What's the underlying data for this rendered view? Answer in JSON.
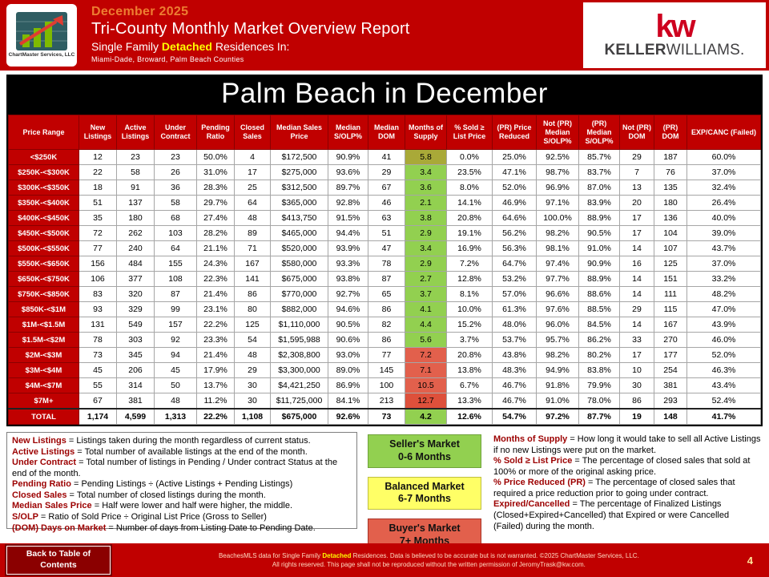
{
  "colors": {
    "brand_red": "#C00000",
    "kw_red": "#CE011F",
    "highlight_yellow": "#FFFF00",
    "sellers_green": "#92D050",
    "balanced_yellow": "#FFFF66",
    "buyers_red": "#E2604C"
  },
  "header": {
    "date": "December 2025",
    "title": "Tri-County Monthly Market Overview Report",
    "subtitle_prefix": "Single Family ",
    "subtitle_highlight": "Detached",
    "subtitle_suffix": " Residences In:",
    "counties": "Miami-Dade, Broward, Palm Beach Counties",
    "logo_text": "ChartMaster Services, LLC",
    "kw_mark": "kw",
    "kw_name_bold": "KELLER",
    "kw_name_light": "WILLIAMS."
  },
  "table": {
    "title": "Palm Beach in December",
    "columns": [
      "Price Range",
      "New Listings",
      "Active Listings",
      "Under Contract",
      "Pending Ratio",
      "Closed Sales",
      "Median Sales Price",
      "Median S/OLP%",
      "Median DOM",
      "Months of Supply",
      "% Sold ≥ List Price",
      "(PR) Price Reduced",
      "Not (PR) Median S/OLP%",
      "(PR) Median S/OLP%",
      "Not (PR) DOM",
      "(PR) DOM",
      "EXP/CANC (Failed)"
    ],
    "rows": [
      {
        "label": "<$250K",
        "values": [
          "12",
          "23",
          "23",
          "50.0%",
          "4",
          "$172,500",
          "90.9%",
          "41",
          "5.8",
          "0.0%",
          "25.0%",
          "92.5%",
          "85.7%",
          "29",
          "187",
          "60.0%"
        ],
        "supply_color": "#A9A938"
      },
      {
        "label": "$250K-<$300K",
        "values": [
          "22",
          "58",
          "26",
          "31.0%",
          "17",
          "$275,000",
          "93.6%",
          "29",
          "3.4",
          "23.5%",
          "47.1%",
          "98.7%",
          "83.7%",
          "7",
          "76",
          "37.0%"
        ],
        "supply_color": "#92D050"
      },
      {
        "label": "$300K-<$350K",
        "values": [
          "18",
          "91",
          "36",
          "28.3%",
          "25",
          "$312,500",
          "89.7%",
          "67",
          "3.6",
          "8.0%",
          "52.0%",
          "96.9%",
          "87.0%",
          "13",
          "135",
          "32.4%"
        ],
        "supply_color": "#92D050"
      },
      {
        "label": "$350K-<$400K",
        "values": [
          "51",
          "137",
          "58",
          "29.7%",
          "64",
          "$365,000",
          "92.8%",
          "46",
          "2.1",
          "14.1%",
          "46.9%",
          "97.1%",
          "83.9%",
          "20",
          "180",
          "26.4%"
        ],
        "supply_color": "#92D050"
      },
      {
        "label": "$400K-<$450K",
        "values": [
          "35",
          "180",
          "68",
          "27.4%",
          "48",
          "$413,750",
          "91.5%",
          "63",
          "3.8",
          "20.8%",
          "64.6%",
          "100.0%",
          "88.9%",
          "17",
          "136",
          "40.0%"
        ],
        "supply_color": "#92D050"
      },
      {
        "label": "$450K-<$500K",
        "values": [
          "72",
          "262",
          "103",
          "28.2%",
          "89",
          "$465,000",
          "94.4%",
          "51",
          "2.9",
          "19.1%",
          "56.2%",
          "98.2%",
          "90.5%",
          "17",
          "104",
          "39.0%"
        ],
        "supply_color": "#92D050"
      },
      {
        "label": "$500K-<$550K",
        "values": [
          "77",
          "240",
          "64",
          "21.1%",
          "71",
          "$520,000",
          "93.9%",
          "47",
          "3.4",
          "16.9%",
          "56.3%",
          "98.1%",
          "91.0%",
          "14",
          "107",
          "43.7%"
        ],
        "supply_color": "#92D050"
      },
      {
        "label": "$550K-<$650K",
        "values": [
          "156",
          "484",
          "155",
          "24.3%",
          "167",
          "$580,000",
          "93.3%",
          "78",
          "2.9",
          "7.2%",
          "64.7%",
          "97.4%",
          "90.9%",
          "16",
          "125",
          "37.0%"
        ],
        "supply_color": "#92D050"
      },
      {
        "label": "$650K-<$750K",
        "values": [
          "106",
          "377",
          "108",
          "22.3%",
          "141",
          "$675,000",
          "93.8%",
          "87",
          "2.7",
          "12.8%",
          "53.2%",
          "97.7%",
          "88.9%",
          "14",
          "151",
          "33.2%"
        ],
        "supply_color": "#92D050"
      },
      {
        "label": "$750K-<$850K",
        "values": [
          "83",
          "320",
          "87",
          "21.4%",
          "86",
          "$770,000",
          "92.7%",
          "65",
          "3.7",
          "8.1%",
          "57.0%",
          "96.6%",
          "88.6%",
          "14",
          "111",
          "48.2%"
        ],
        "supply_color": "#92D050"
      },
      {
        "label": "$850K-<$1M",
        "values": [
          "93",
          "329",
          "99",
          "23.1%",
          "80",
          "$882,000",
          "94.6%",
          "86",
          "4.1",
          "10.0%",
          "61.3%",
          "97.6%",
          "88.5%",
          "29",
          "115",
          "47.0%"
        ],
        "supply_color": "#92D050"
      },
      {
        "label": "$1M-<$1.5M",
        "values": [
          "131",
          "549",
          "157",
          "22.2%",
          "125",
          "$1,110,000",
          "90.5%",
          "82",
          "4.4",
          "15.2%",
          "48.0%",
          "96.0%",
          "84.5%",
          "14",
          "167",
          "43.9%"
        ],
        "supply_color": "#92D050"
      },
      {
        "label": "$1.5M-<$2M",
        "values": [
          "78",
          "303",
          "92",
          "23.3%",
          "54",
          "$1,595,988",
          "90.6%",
          "86",
          "5.6",
          "3.7%",
          "53.7%",
          "95.7%",
          "86.2%",
          "33",
          "270",
          "46.0%"
        ],
        "supply_color": "#92D050"
      },
      {
        "label": "$2M-<$3M",
        "values": [
          "73",
          "345",
          "94",
          "21.4%",
          "48",
          "$2,308,800",
          "93.0%",
          "77",
          "7.2",
          "20.8%",
          "43.8%",
          "98.2%",
          "80.2%",
          "17",
          "177",
          "52.0%"
        ],
        "supply_color": "#E2604C"
      },
      {
        "label": "$3M-<$4M",
        "values": [
          "45",
          "206",
          "45",
          "17.9%",
          "29",
          "$3,300,000",
          "89.0%",
          "145",
          "7.1",
          "13.8%",
          "48.3%",
          "94.9%",
          "83.8%",
          "10",
          "254",
          "46.3%"
        ],
        "supply_color": "#E2604C"
      },
      {
        "label": "$4M-<$7M",
        "values": [
          "55",
          "314",
          "50",
          "13.7%",
          "30",
          "$4,421,250",
          "86.9%",
          "100",
          "10.5",
          "6.7%",
          "46.7%",
          "91.8%",
          "79.9%",
          "30",
          "381",
          "43.4%"
        ],
        "supply_color": "#E2604C"
      },
      {
        "label": "$7M+",
        "values": [
          "67",
          "381",
          "48",
          "11.2%",
          "30",
          "$11,725,000",
          "84.1%",
          "213",
          "12.7",
          "13.3%",
          "46.7%",
          "91.0%",
          "78.0%",
          "86",
          "293",
          "52.4%"
        ],
        "supply_color": "#DE503B"
      },
      {
        "label": "TOTAL",
        "is_total": true,
        "values": [
          "1,174",
          "4,599",
          "1,313",
          "22.2%",
          "1,108",
          "$675,000",
          "92.6%",
          "73",
          "4.2",
          "12.6%",
          "54.7%",
          "97.2%",
          "87.7%",
          "19",
          "148",
          "41.7%"
        ],
        "supply_color": "#92D050"
      }
    ]
  },
  "legend": [
    {
      "line1": "Seller's Market",
      "line2": "0-6 Months"
    },
    {
      "line1": "Balanced Market",
      "line2": "6-7 Months"
    },
    {
      "line1": "Buyer's Market",
      "line2": "7+ Months"
    }
  ],
  "definitions_left": [
    {
      "term": "New Listings",
      "text": "= Listings taken during the month regardless of current status."
    },
    {
      "term": "Active Listings",
      "text": "= Total number of available listings at the end of the month."
    },
    {
      "term": "Under Contract",
      "text": "= Total number of listings in Pending / Under contract Status at the end of the month."
    },
    {
      "term": "Pending Ratio",
      "text": "= Pending Listings ÷ (Active Listings + Pending Listings)"
    },
    {
      "term": "Closed Sales",
      "text": "= Total number of closed listings during the month."
    },
    {
      "term": "Median Sales Price",
      "text": "= Half were lower and half were higher, the middle."
    },
    {
      "term": "S/OLP",
      "text": "= Ratio of Sold Price ÷ Original List Price (Gross to Seller)"
    },
    {
      "term": "(DOM) Days on Market",
      "text": "= Number of days from Listing Date to Pending Date."
    }
  ],
  "definitions_right": [
    {
      "term": "Months of Supply",
      "text": "= How long it would take to sell all Active Listings if no new Listings were put on the market."
    },
    {
      "term": "% Sold ≥ List Price",
      "text": "= The percentage of closed sales that sold at 100% or more of the original asking price."
    },
    {
      "term": "% Price Reduced (PR)",
      "text": "= The percentage of closed sales that required a price reduction prior to going under contract."
    },
    {
      "term": "Expired/Cancelled",
      "text": "= The percentage of Finalized Listings (Closed+Expired+Cancelled) that Expired or were Cancelled (Failed) during the month."
    }
  ],
  "footer": {
    "back_button": "Back to Table of Contents",
    "disclaimer_prefix": "BeachesMLS data for Single Family ",
    "disclaimer_highlight": "Detached",
    "disclaimer_suffix": " Residences. Data is believed to be accurate but is not warranted. ©2025 ChartMaster Services, LLC.",
    "disclaimer_line2": "All rights reserved. This page shall not be reproduced without the written permission of JeromyTrask@kw.com.",
    "page_number": "4"
  }
}
